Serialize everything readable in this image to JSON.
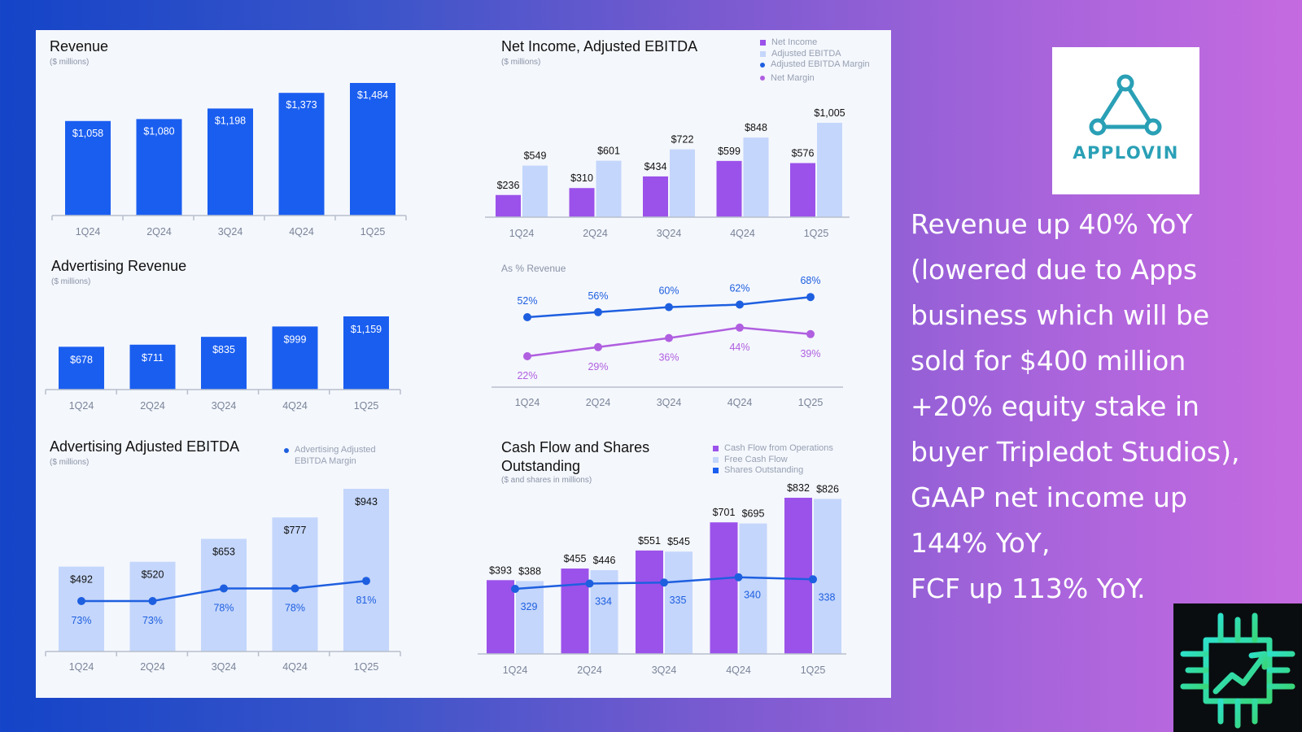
{
  "headline": "Revenue up 40% YoY\n(lowered due to Apps\nbusiness which will be\nsold for $400 million\n+20% equity stake in\nbuyer Tripledot Studios),\nGAAP net income up\n144% YoY,\nFCF up 113% YoY.",
  "logo": {
    "text": "APPLOVIN",
    "color": "#2aa0b6"
  },
  "colors": {
    "blue": "#1a5ef0",
    "light_blue": "#c4d6fb",
    "purple": "#9b52ea",
    "line_blue": "#1e5fe0",
    "line_purple": "#b05fe0",
    "axis": "#b8bfcc",
    "tick": "#7a8499"
  },
  "chart_data": [
    {
      "type": "bar",
      "title": "Revenue",
      "subtitle": "($ millions)",
      "categories": [
        "1Q24",
        "2Q24",
        "3Q24",
        "4Q24",
        "1Q25"
      ],
      "values": [
        1058,
        1080,
        1198,
        1373,
        1484
      ],
      "labels": [
        "$1,058",
        "$1,080",
        "$1,198",
        "$1,373",
        "$1,484"
      ]
    },
    {
      "type": "bar",
      "title": "Advertising Revenue",
      "subtitle": "($ millions)",
      "categories": [
        "1Q24",
        "2Q24",
        "3Q24",
        "4Q24",
        "1Q25"
      ],
      "values": [
        678,
        711,
        835,
        999,
        1159
      ],
      "labels": [
        "$678",
        "$711",
        "$835",
        "$999",
        "$1,159"
      ]
    },
    {
      "type": "bar",
      "title": "Advertising Adjusted EBITDA",
      "subtitle": "($ millions)",
      "categories": [
        "1Q24",
        "2Q24",
        "3Q24",
        "4Q24",
        "1Q25"
      ],
      "legend": [
        "Advertising Adjusted EBITDA Margin"
      ],
      "values": [
        492,
        520,
        653,
        777,
        943
      ],
      "labels": [
        "$492",
        "$520",
        "$653",
        "$777",
        "$943"
      ],
      "margin": {
        "values": [
          73,
          73,
          78,
          78,
          81
        ],
        "labels": [
          "73%",
          "73%",
          "78%",
          "78%",
          "81%"
        ]
      }
    },
    {
      "type": "bar",
      "title": "Net Income, Adjusted EBITDA",
      "subtitle": "($ millions)",
      "categories": [
        "1Q24",
        "2Q24",
        "3Q24",
        "4Q24",
        "1Q25"
      ],
      "legend": [
        "Net Income",
        "Adjusted EBITDA",
        "Adjusted EBITDA Margin",
        "Net Margin"
      ],
      "series": [
        {
          "name": "Net Income",
          "values": [
            236,
            310,
            434,
            599,
            576
          ],
          "labels": [
            "$236",
            "$310",
            "$434",
            "$599",
            "$576"
          ]
        },
        {
          "name": "Adjusted EBITDA",
          "values": [
            549,
            601,
            722,
            848,
            1005
          ],
          "labels": [
            "$549",
            "$601",
            "$722",
            "$848",
            "$1,005"
          ]
        }
      ]
    },
    {
      "type": "line",
      "title": "As % Revenue",
      "categories": [
        "1Q24",
        "2Q24",
        "3Q24",
        "4Q24",
        "1Q25"
      ],
      "series": [
        {
          "name": "Adjusted EBITDA Margin",
          "values": [
            52,
            56,
            60,
            62,
            68
          ],
          "labels": [
            "52%",
            "56%",
            "60%",
            "62%",
            "68%"
          ]
        },
        {
          "name": "Net Margin",
          "values": [
            22,
            29,
            36,
            44,
            39
          ],
          "labels": [
            "22%",
            "29%",
            "36%",
            "44%",
            "39%"
          ]
        }
      ]
    },
    {
      "type": "bar",
      "title": "Cash Flow and Shares Outstanding",
      "subtitle": "($ and shares in millions)",
      "categories": [
        "1Q24",
        "2Q24",
        "3Q24",
        "4Q24",
        "1Q25"
      ],
      "legend": [
        "Cash Flow from Operations",
        "Free Cash Flow",
        "Shares Outstanding"
      ],
      "series": [
        {
          "name": "Cash Flow from Operations",
          "values": [
            393,
            455,
            551,
            701,
            832
          ],
          "labels": [
            "$393",
            "$455",
            "$551",
            "$701",
            "$832"
          ]
        },
        {
          "name": "Free Cash Flow",
          "values": [
            388,
            446,
            545,
            695,
            826
          ],
          "labels": [
            "$388",
            "$446",
            "$545",
            "$695",
            "$826"
          ]
        },
        {
          "name": "Shares Outstanding",
          "values": [
            329,
            334,
            335,
            340,
            338
          ],
          "labels": [
            "329",
            "334",
            "335",
            "340",
            "338"
          ]
        }
      ]
    }
  ]
}
